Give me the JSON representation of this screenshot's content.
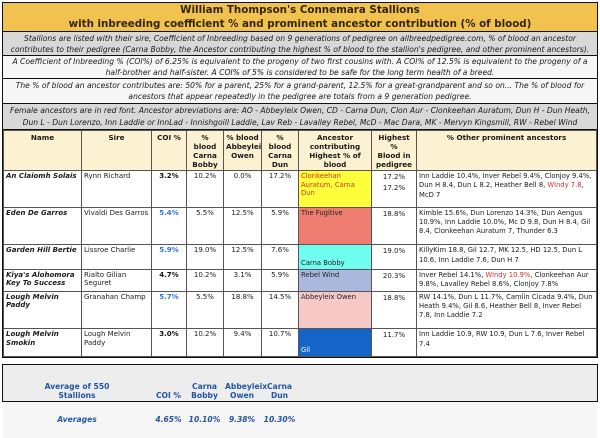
{
  "colors": {
    "title_bg": "#f2c24e",
    "title_text": "#32250a",
    "red_font": "#d93025",
    "coi_blue": "#2e74d9",
    "footer_text": "#2255a4"
  },
  "title": {
    "line1": "William Thompson's Connemara Stallions",
    "line2": "with inbreeding coefficient % and prominent ancestor contribution (% of blood)"
  },
  "notes": [
    "Stallions are listed with their sire, Coefficient of Inbreeding based on 9 generations of pedigree on allbreedpedigree.com, % of blood an ancestor contributes to their pedigree (Carna Bobby, the Ancestor contributing the highest % of blood to the stallion's pedigree, and other prominent ancestors).",
    "A Coefficient of Inbreeding % (COI%) of 6.25% is equivalent to the progeny of two first cousins with. A COI% of 12.5% is equivalent to the progeny of a half-brother and half-sister. A COI% of 5% is considered to be safe for the long term health of a breed.",
    "The % of blood an ancestor contributes are: 50% for a parent, 25% for a grand-parent, 12.5% for a great-grandparent and so on... The % of blood for ancestors that appear repeatedly in the pedigree are totals from a 9 generation pedigree.",
    "Female ancestors are in red font. Ancestor abreviations are: AO - Abbeyleix Owen, CD - Carna Dun, Clon Aur - Clonkeehan Auratum, Dun H - Dun Heath, Dun L - Dun Lorenzo, Inn Laddie or InnLad - Innishgoill Laddie, Lav Reb - Lavalley Rebel, McD - Mac Dara, MK - Mervyn Kingsmill, RW - Rebel Wind"
  ],
  "table": {
    "headers": {
      "name": "Name",
      "sire": "Sire",
      "coi": "COI %",
      "blood_carna_bobby": "% blood\nCarna\nBobby",
      "blood_abbeyleix_owen": "% blood\nAbbeyleix\nOwen",
      "blood_carna_dun": "% blood\nCarna Dun",
      "top_ancestor": "Ancestor\ncontributing\nHighest % of blood",
      "highest_blood": "Highest  %\nBlood in\npedigree",
      "other_ancestors": "% Other prominent ancestors"
    },
    "rows": [
      {
        "name": "An Claiomh Solais",
        "sire": "Rynn Richard",
        "coi": {
          "value": "3.2%",
          "color": "#111111"
        },
        "blood_carna_bobby": "10.2%",
        "blood_abbeyleix_owen": "0.0%",
        "blood_carna_dun": "17.2%",
        "ancestor": {
          "label": "Clonkeehan Auratum, Carna Dun",
          "bg": "#ffff3c",
          "color": "#d93025",
          "valign": "top"
        },
        "highest": "17.2%\n17.2%",
        "others": [
          {
            "text": "Inn Laddie 10.4%, Inver Rebel 9.4%, Clonjoy 9.4%, Dun H 8.4, Dun L 8.2, Heather Bell 8, "
          },
          {
            "text": "Windy 7.8",
            "red": true
          },
          {
            "text": ", McD 7"
          }
        ]
      },
      {
        "name": "Eden De Garros",
        "sire": "Vivaldi Des Garros",
        "coi": {
          "value": "5.4%",
          "color": "#2e74d9"
        },
        "blood_carna_bobby": "5.5%",
        "blood_abbeyleix_owen": "12.5%",
        "blood_carna_dun": "5.9%",
        "ancestor": {
          "label": "The Fugitive",
          "bg": "#ef7d72",
          "color": "#222222",
          "valign": "top"
        },
        "highest": "18.8%",
        "others": [
          {
            "text": "Kimble 15.6%, Dun Lorenzo 14.3%, Dun Aengus 10.9%, Inn Laddie 10.0%, Mc D 9.8, Dun H 8.4, Gil 8.4, Clonkeehan Auratum 7, Thunder 6.3"
          }
        ]
      },
      {
        "name": "Garden Hill Bertie",
        "sire": "Lissroe Charlie",
        "coi": {
          "value": "5.9%",
          "color": "#2e74d9"
        },
        "blood_carna_bobby": "19.0%",
        "blood_abbeyleix_owen": "12.5%",
        "blood_carna_dun": "7.6%",
        "ancestor": {
          "label": "Carna Bobby",
          "bg": "#6ffdf0",
          "color": "#222222",
          "valign": "bottom"
        },
        "highest": "19.0%",
        "others": [
          {
            "text": "KillyKim 18.8, Gil 12.7, MK 12.5, HD 12.5, Dun L 10.6, Inn Laddie 7.6, Dun H 7"
          }
        ]
      },
      {
        "name": "Kiya's Alohomora Key To Success",
        "sire": "Rialto Gilian Seguret",
        "coi": {
          "value": "4.7%",
          "color": "#111111"
        },
        "blood_carna_bobby": "10.2%",
        "blood_abbeyleix_owen": "3.1%",
        "blood_carna_dun": "5.9%",
        "ancestor": {
          "label": "Rebel Wind",
          "bg": "#a9b8dc",
          "color": "#222222",
          "valign": "top"
        },
        "highest": "20.3%",
        "others": [
          {
            "text": "Inver Rebel 14.1%, "
          },
          {
            "text": "Windy 10.9%",
            "red": true
          },
          {
            "text": ", Clonkeehan Aur 9.8%, Lavalley Rebel 8.6%, Clonjoy 7.8%"
          }
        ]
      },
      {
        "name": "Lough Melvin Paddy",
        "sire": "Granahan Champ",
        "coi": {
          "value": "5.7%",
          "color": "#2e74d9"
        },
        "blood_carna_bobby": "5.5%",
        "blood_abbeyleix_owen": "18.8%",
        "blood_carna_dun": "14.5%",
        "ancestor": {
          "label": "Abbeyleix Owen",
          "bg": "#f7c9c6",
          "color": "#222222",
          "valign": "top"
        },
        "highest": "18.8%",
        "others": [
          {
            "text": "RW 14.1%, Dun L 11.7%, Camlin Cicada 9.4%, Dun Heath 9.4%, Gil 8.6, Heather Bell 8, Inver Rebel 7.8, Inn Laddie 7.2"
          }
        ]
      },
      {
        "name": "Lough Melvin Smokin",
        "sire": "Lough Melvin Paddy",
        "coi": {
          "value": "3.0%",
          "color": "#111111"
        },
        "blood_carna_bobby": "10.2%",
        "blood_abbeyleix_owen": "9.4%",
        "blood_carna_dun": "10.7%",
        "ancestor": {
          "label": "Gil",
          "bg": "#1565c8",
          "color": "#ffffff",
          "valign": "bottom"
        },
        "highest": "11.7%",
        "others": [
          {
            "text": "Inn Laddie 10.9, RW 10.9, Dun L 7.6, Inver Rebel 7.4"
          }
        ]
      }
    ]
  },
  "footer": {
    "label": "Average of 550\nStallions",
    "col_coi": "COI %",
    "col_carna_bobby": "Carna\nBobby",
    "col_abbeyleix_owen": "Abbeyleix\nOwen",
    "col_carna_dun": "Carna Dun",
    "averages_label": "Averages",
    "avg_coi": "4.65%",
    "avg_carna_bobby": "10.10%",
    "avg_abbeyleix_owen": "9.38%",
    "avg_carna_dun": "10.30%"
  }
}
